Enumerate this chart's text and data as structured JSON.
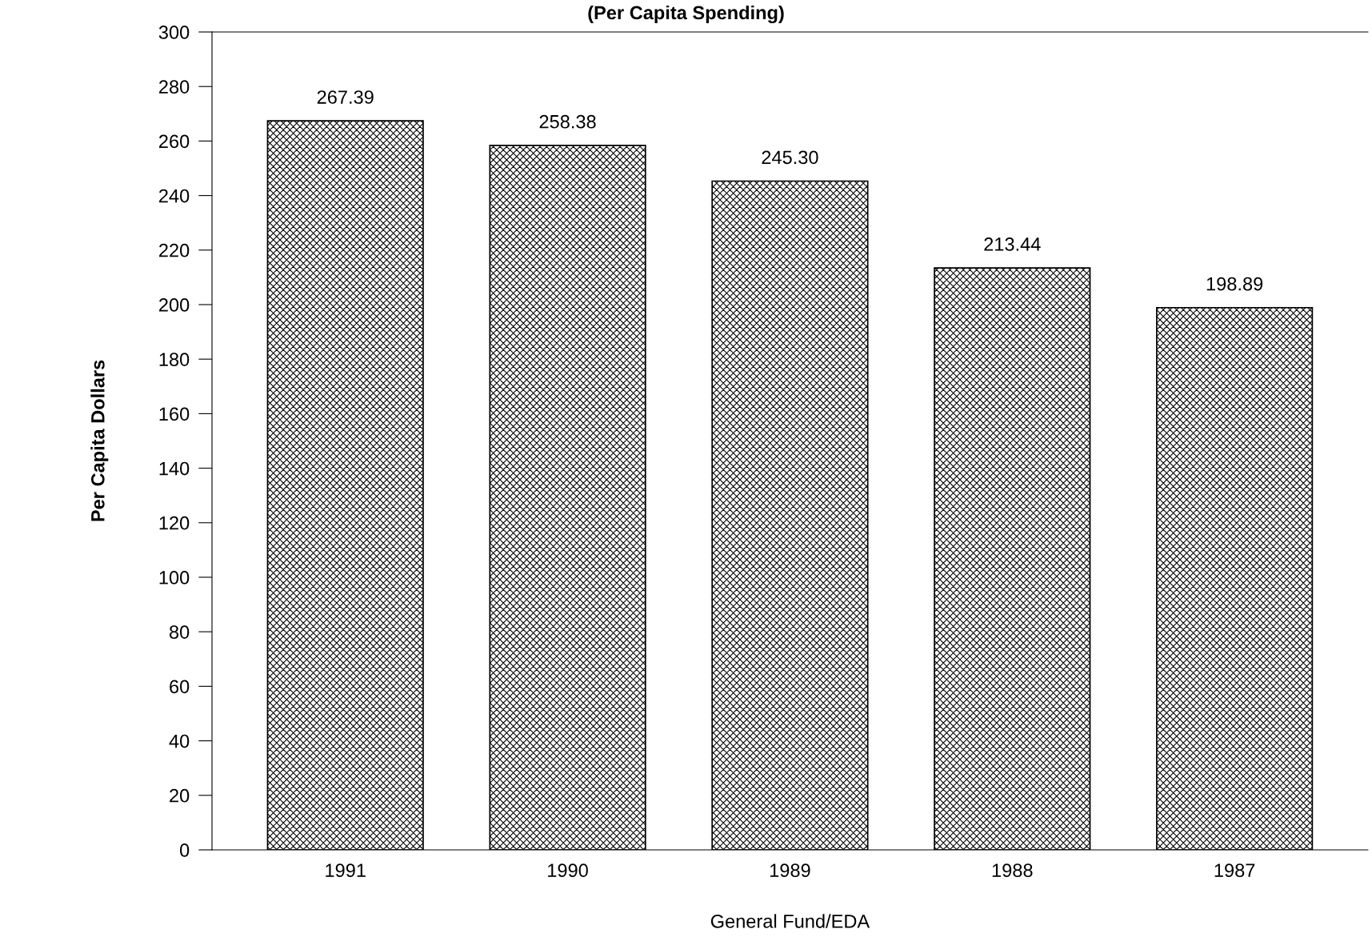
{
  "chart_data": {
    "type": "bar",
    "subtitle": "(Per Capita Spending)",
    "xlabel": "General Fund/EDA",
    "ylabel": "Per Capita Dollars",
    "categories": [
      "1991",
      "1990",
      "1989",
      "1988",
      "1987"
    ],
    "values": [
      267.39,
      258.38,
      245.3,
      213.44,
      198.89
    ],
    "value_labels": [
      "267.39",
      "258.38",
      "245.30",
      "213.44",
      "198.89"
    ],
    "color": "#000000",
    "ylim": [
      0,
      300
    ],
    "yticks": [
      0,
      20,
      40,
      60,
      80,
      100,
      120,
      140,
      160,
      180,
      200,
      220,
      240,
      260,
      280,
      300
    ],
    "grid": false,
    "legend": false
  }
}
